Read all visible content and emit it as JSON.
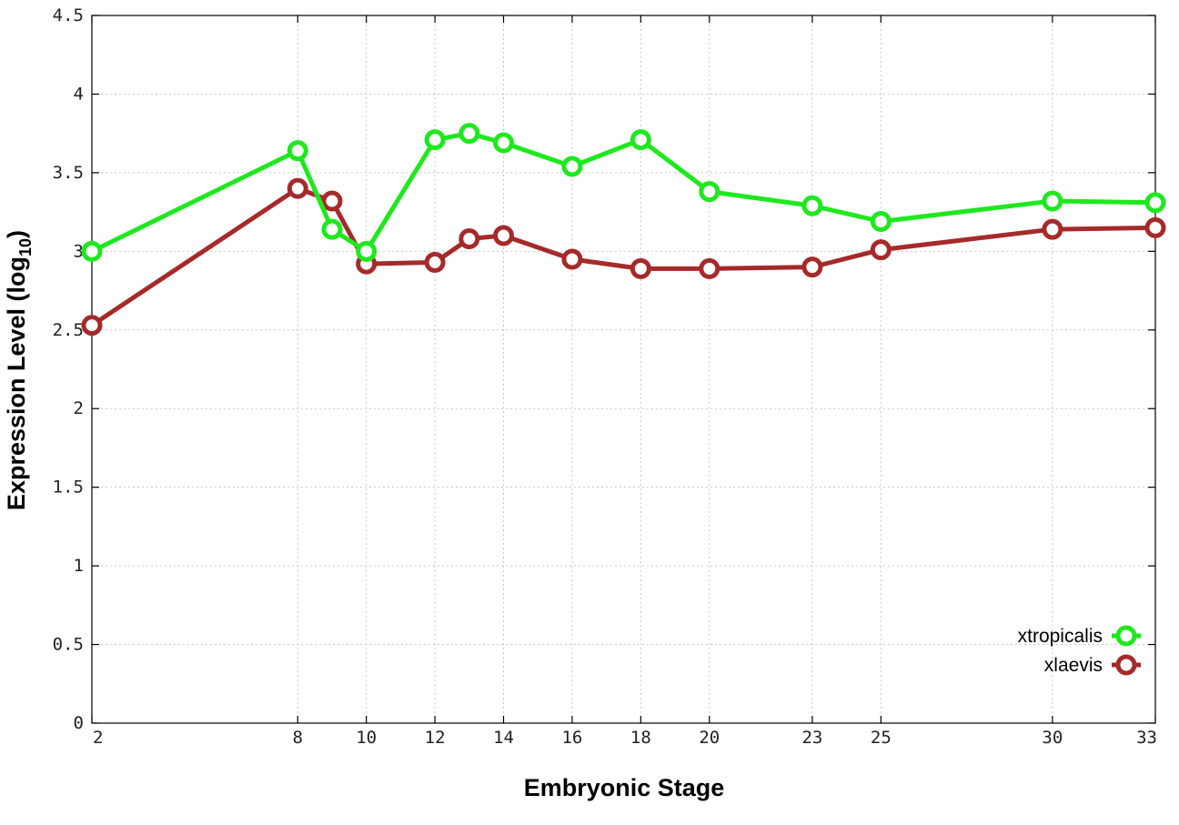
{
  "chart_data": {
    "type": "line",
    "xlabel": "Embryonic Stage",
    "ylabel": "Expression Level (log",
    "ylabel_sub": "10",
    "ylabel_end": ")",
    "ylim": [
      0,
      4.5
    ],
    "yticks": [
      0,
      0.5,
      1,
      1.5,
      2,
      2.5,
      3,
      3.5,
      4,
      4.5
    ],
    "ytick_labels": [
      "0",
      "0.5",
      "1",
      "1.5",
      "2",
      "2.5",
      "3",
      "3.5",
      "4",
      "4.5"
    ],
    "xlim": [
      2,
      33
    ],
    "xticks": [
      2,
      8,
      10,
      12,
      14,
      16,
      18,
      20,
      23,
      25,
      30,
      33
    ],
    "xtick_labels": [
      "2",
      "8",
      "10",
      "12",
      "14",
      "16",
      "18",
      "20",
      "23",
      "25",
      "30",
      "33"
    ],
    "grid": true,
    "legend": "bottom-right",
    "series": [
      {
        "name": "xtropicalis",
        "color": "#1ee81e",
        "x": [
          2,
          8,
          9,
          10,
          12,
          13,
          14,
          16,
          18,
          20,
          23,
          25,
          30,
          33
        ],
        "y": [
          3.0,
          3.64,
          3.14,
          3.0,
          3.71,
          3.75,
          3.69,
          3.54,
          3.71,
          3.38,
          3.29,
          3.19,
          3.32,
          3.31
        ]
      },
      {
        "name": "xlaevis",
        "color": "#a52a2a",
        "x": [
          2,
          8,
          9,
          10,
          12,
          13,
          14,
          16,
          18,
          20,
          23,
          25,
          30,
          33
        ],
        "y": [
          2.53,
          3.4,
          3.32,
          2.92,
          2.93,
          3.08,
          3.1,
          2.95,
          2.89,
          2.89,
          2.9,
          3.01,
          3.14,
          3.15
        ]
      }
    ]
  }
}
